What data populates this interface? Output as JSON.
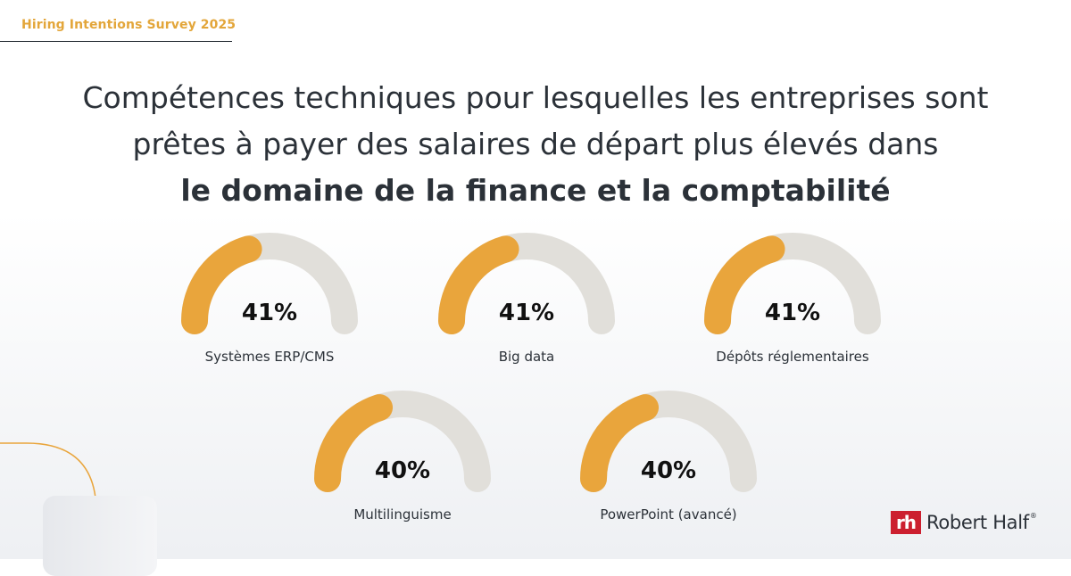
{
  "survey_tag": "Hiring Intentions Survey 2025",
  "title": {
    "line1": "Compétences techniques pour lesquelles les entreprises sont",
    "line2": "prêtes à payer des salaires de départ plus élevés dans",
    "line3": "le domaine de la finance et la comptabilité"
  },
  "colors": {
    "accent": "#e9a53c",
    "track": "#e1dfda",
    "text": "#2b3138",
    "brand_red": "#cc1f2f"
  },
  "chart_data": {
    "type": "gauge",
    "unit": "%",
    "max": 100,
    "items": [
      {
        "label": "Systèmes ERP/CMS",
        "value": 41,
        "value_label": "41%"
      },
      {
        "label": "Big data",
        "value": 41,
        "value_label": "41%"
      },
      {
        "label": "Dépôts réglementaires",
        "value": 41,
        "value_label": "41%"
      },
      {
        "label": "Multilinguisme",
        "value": 40,
        "value_label": "40%"
      },
      {
        "label": "PowerPoint (avancé)",
        "value": 40,
        "value_label": "40%"
      }
    ]
  },
  "logo": {
    "mark": "rh",
    "text": "Robert Half",
    "reg": "®"
  }
}
